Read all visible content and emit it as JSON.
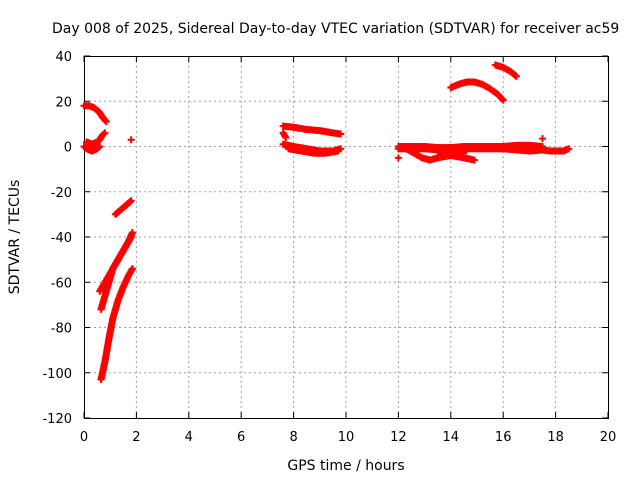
{
  "chart_data": {
    "type": "scatter",
    "title": "Day 008 of 2025, Sidereal Day-to-day VTEC variation (SDTVAR) for receiver ac59",
    "xlabel": "GPS time / hours",
    "ylabel": "SDTVAR / TECUs",
    "xlim": [
      0,
      20
    ],
    "ylim": [
      -120,
      40
    ],
    "xticks": [
      0,
      2,
      4,
      6,
      8,
      10,
      12,
      14,
      16,
      18,
      20
    ],
    "yticks": [
      -120,
      -100,
      -80,
      -60,
      -40,
      -20,
      0,
      20,
      40
    ],
    "grid": true,
    "legend": "none",
    "marker": "plus",
    "color": "#ff0000",
    "tracks": [
      [
        [
          0.0,
          0
        ],
        [
          0.1,
          -1
        ],
        [
          0.3,
          -2
        ],
        [
          0.5,
          -1
        ],
        [
          0.6,
          0
        ]
      ],
      [
        [
          0.1,
          2
        ],
        [
          0.3,
          1
        ],
        [
          0.5,
          2
        ],
        [
          0.6,
          3
        ],
        [
          0.7,
          5
        ],
        [
          0.8,
          6
        ]
      ],
      [
        [
          0.0,
          18
        ],
        [
          0.2,
          18
        ],
        [
          0.4,
          17
        ],
        [
          0.6,
          15
        ],
        [
          0.7,
          13
        ],
        [
          0.85,
          11
        ]
      ],
      [
        [
          1.2,
          -30
        ],
        [
          1.4,
          -28
        ],
        [
          1.6,
          -26
        ],
        [
          1.8,
          -24
        ]
      ],
      [
        [
          0.65,
          -103
        ],
        [
          0.8,
          -95
        ],
        [
          0.95,
          -85
        ],
        [
          1.1,
          -76
        ],
        [
          1.3,
          -68
        ],
        [
          1.5,
          -62
        ],
        [
          1.7,
          -57
        ],
        [
          1.85,
          -54
        ]
      ],
      [
        [
          0.65,
          -72
        ],
        [
          0.8,
          -66
        ],
        [
          0.95,
          -60
        ],
        [
          1.1,
          -54
        ],
        [
          1.3,
          -50
        ],
        [
          1.5,
          -46
        ],
        [
          1.7,
          -42
        ],
        [
          1.85,
          -38
        ]
      ],
      [
        [
          0.6,
          -64
        ],
        [
          0.8,
          -60
        ],
        [
          1.0,
          -56
        ],
        [
          1.2,
          -52
        ],
        [
          1.4,
          -48
        ],
        [
          1.6,
          -44
        ],
        [
          1.8,
          -40
        ]
      ],
      [
        [
          1.8,
          3
        ]
      ],
      [
        [
          7.6,
          9
        ],
        [
          8.0,
          8.5
        ],
        [
          8.5,
          7.5
        ],
        [
          9.0,
          7
        ],
        [
          9.5,
          6
        ],
        [
          9.8,
          5.5
        ]
      ],
      [
        [
          7.6,
          6
        ],
        [
          7.7,
          4
        ]
      ],
      [
        [
          7.6,
          1
        ],
        [
          8.0,
          0
        ],
        [
          8.5,
          -1
        ],
        [
          9.0,
          -2
        ],
        [
          9.5,
          -2
        ],
        [
          9.8,
          -1
        ]
      ],
      [
        [
          7.8,
          -1
        ],
        [
          8.3,
          -2
        ],
        [
          8.8,
          -3
        ],
        [
          9.2,
          -3
        ],
        [
          9.7,
          -2
        ]
      ],
      [
        [
          12.0,
          -1
        ],
        [
          12.5,
          -1
        ],
        [
          13.0,
          -1
        ],
        [
          13.5,
          -1.5
        ],
        [
          14.0,
          -1.5
        ],
        [
          14.5,
          -1
        ],
        [
          15.0,
          -1
        ],
        [
          15.5,
          -1
        ],
        [
          16.0,
          -1
        ],
        [
          16.5,
          -0.5
        ],
        [
          17.0,
          -0.5
        ],
        [
          17.5,
          -1
        ]
      ],
      [
        [
          12.0,
          0
        ],
        [
          12.5,
          0
        ],
        [
          13.0,
          0
        ],
        [
          13.5,
          -0.5
        ],
        [
          14.0,
          -0.5
        ],
        [
          14.5,
          0
        ],
        [
          15.0,
          0
        ],
        [
          16.0,
          0
        ],
        [
          16.5,
          0.5
        ],
        [
          17.0,
          0.5
        ],
        [
          17.5,
          0
        ]
      ],
      [
        [
          12.0,
          -5
        ]
      ],
      [
        [
          12.3,
          -1
        ],
        [
          12.6,
          -3
        ],
        [
          12.9,
          -5
        ],
        [
          13.2,
          -6
        ],
        [
          13.5,
          -5
        ],
        [
          14.0,
          -4
        ],
        [
          14.5,
          -5
        ],
        [
          14.9,
          -6
        ]
      ],
      [
        [
          13.5,
          -2
        ],
        [
          14.0,
          -2.5
        ],
        [
          14.5,
          -3
        ]
      ],
      [
        [
          16.0,
          -1
        ],
        [
          16.5,
          -1.5
        ],
        [
          17.0,
          -2
        ],
        [
          17.5,
          -1.5
        ],
        [
          17.8,
          -2
        ],
        [
          18.3,
          -2
        ],
        [
          18.5,
          -1
        ]
      ],
      [
        [
          17.5,
          3.5
        ]
      ],
      [
        [
          14.0,
          26
        ],
        [
          14.3,
          27.5
        ],
        [
          14.6,
          28.5
        ],
        [
          14.9,
          28.5
        ],
        [
          15.2,
          27.5
        ],
        [
          15.5,
          25.5
        ],
        [
          15.8,
          23
        ],
        [
          16.0,
          20.5
        ]
      ],
      [
        [
          15.7,
          36
        ],
        [
          16.0,
          35
        ],
        [
          16.3,
          33
        ],
        [
          16.5,
          31
        ]
      ]
    ]
  }
}
